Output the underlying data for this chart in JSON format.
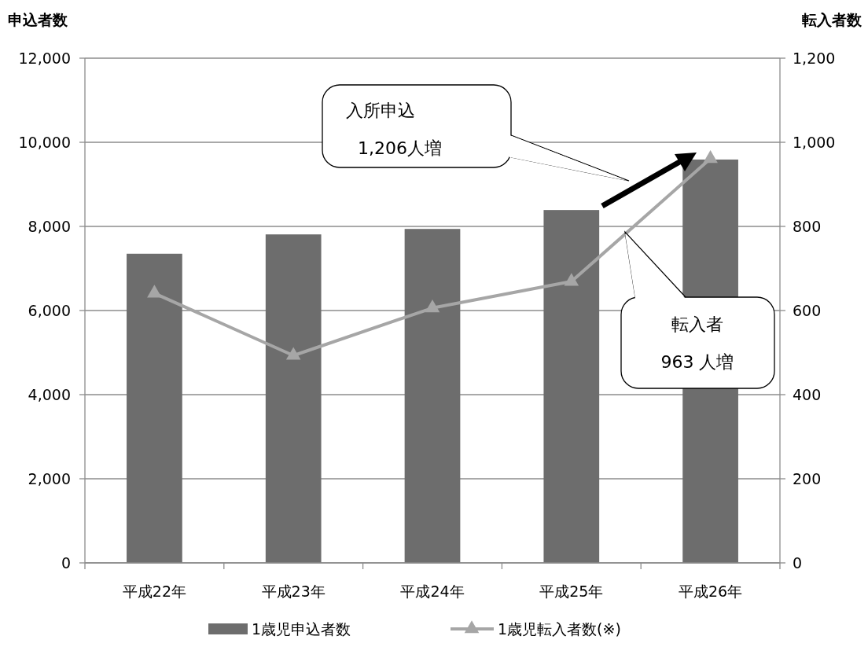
{
  "chart_data": {
    "type": "bar",
    "categories": [
      "平成22年",
      "平成23年",
      "平成24年",
      "平成25年",
      "平成26年"
    ],
    "ylabel": "申込者数",
    "y2label": "転入者数",
    "ylim": [
      0,
      12000
    ],
    "yticks": [
      {
        "value": 0,
        "label": "0"
      },
      {
        "value": 2000,
        "label": "2,000"
      },
      {
        "value": 4000,
        "label": "4,000"
      },
      {
        "value": 6000,
        "label": "6,000"
      },
      {
        "value": 8000,
        "label": "8,000"
      },
      {
        "value": 10000,
        "label": "10,000"
      },
      {
        "value": 12000,
        "label": "12,000"
      }
    ],
    "y2lim": [
      0,
      1200
    ],
    "y2ticks": [
      0,
      200,
      400,
      600,
      800,
      {
        "value": 1000,
        "label": "1,000"
      },
      {
        "value": 1200,
        "label": "1,200"
      }
    ],
    "series": [
      {
        "name": "1歳児申込者数",
        "color": "#6d6d6d",
        "values": [
          7350,
          7810,
          7940,
          8390,
          9590
        ]
      },
      {
        "name": "1歳児転入者数(※)",
        "type": "line",
        "axis": "y2",
        "color": "#a6a6a6",
        "marker": "triangle",
        "values": [
          641,
          493,
          606,
          669,
          961
        ]
      }
    ],
    "annotations": [
      "入所申込\n1,206人増",
      "転入者\n963 人増"
    ],
    "grid": "y",
    "legend": "bottom"
  }
}
